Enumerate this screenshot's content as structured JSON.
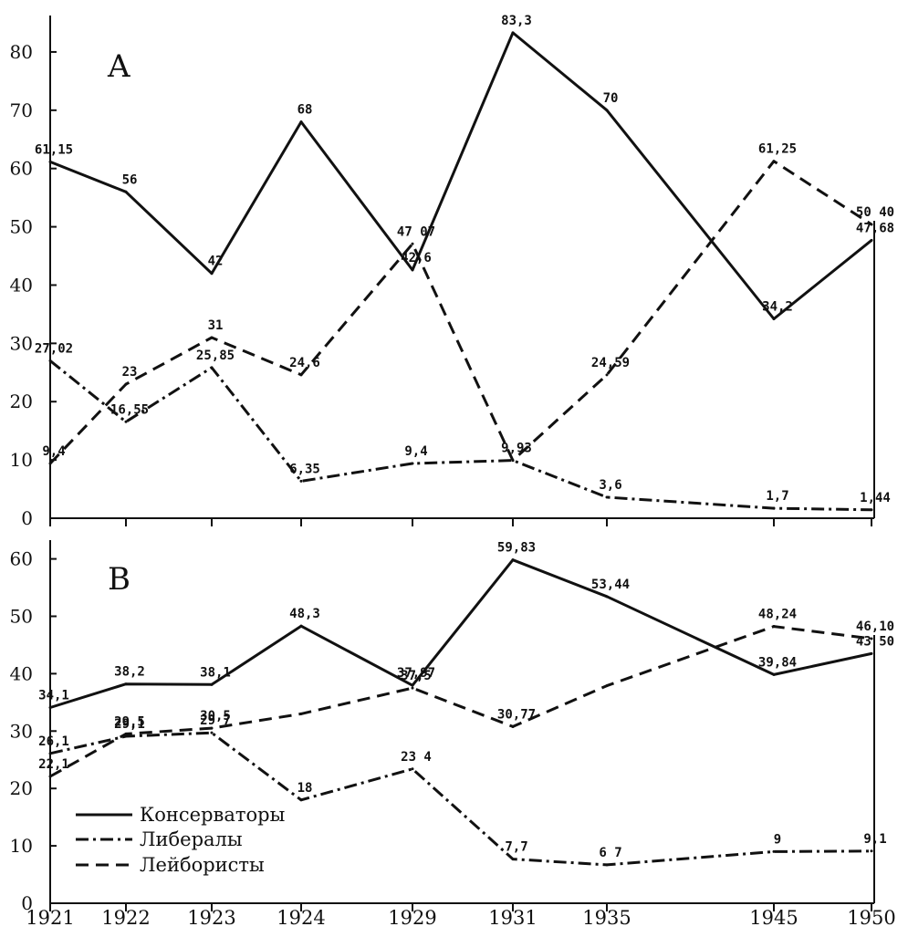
{
  "chart_data": [
    {
      "panel": "A",
      "type": "line",
      "categories": [
        "1921",
        "1922",
        "1923",
        "1924",
        "1929",
        "1931",
        "1935",
        "1945",
        "1950"
      ],
      "ylim": [
        0,
        85
      ],
      "yticks": [
        0,
        10,
        20,
        30,
        40,
        50,
        60,
        70,
        80
      ],
      "series": [
        {
          "key": "conservatives",
          "values": [
            61.15,
            56,
            42,
            68,
            42.6,
            83.3,
            70,
            34.2,
            47.68
          ],
          "labels": [
            "61,15",
            "56",
            "42",
            "68",
            "42,6",
            "83,3",
            "70",
            "34,2",
            "47,68"
          ]
        },
        {
          "key": "liberals",
          "values": [
            27.02,
            16.55,
            25.85,
            6.35,
            9.4,
            9.93,
            3.6,
            1.7,
            1.44
          ],
          "labels": [
            "27,02",
            "16,55",
            "25,85",
            "6,35",
            "9,4",
            "9,93",
            "3,6",
            "1,7",
            "1,44"
          ]
        },
        {
          "key": "labour",
          "values": [
            9.4,
            23,
            31,
            24.6,
            47.07,
            9.93,
            24.59,
            61.25,
            50.4
          ],
          "labels": [
            "9,4",
            "23",
            "31",
            "24,6",
            "47 07",
            "",
            "24,59",
            "61,25",
            "50 40"
          ]
        }
      ]
    },
    {
      "panel": "B",
      "type": "line",
      "categories": [
        "1921",
        "1922",
        "1923",
        "1924",
        "1929",
        "1931",
        "1935",
        "1945",
        "1950"
      ],
      "ylim": [
        0,
        62
      ],
      "yticks": [
        0,
        10,
        20,
        30,
        40,
        50,
        60
      ],
      "series": [
        {
          "key": "conservatives",
          "values": [
            34.1,
            38.2,
            38.1,
            48.3,
            37.97,
            59.83,
            53.44,
            39.84,
            43.5
          ],
          "labels": [
            "34,1",
            "38,2",
            "38,1",
            "48,3",
            "37,97",
            "59,83",
            "53,44",
            "39,84",
            "43 50"
          ]
        },
        {
          "key": "liberals",
          "values": [
            26.1,
            29.1,
            29.7,
            18,
            23.4,
            7.7,
            6.7,
            9,
            9.1
          ],
          "labels": [
            "26,1",
            "29,1",
            "29 7",
            "18",
            "23 4",
            "7,7",
            "6 7",
            "9",
            "9,1"
          ]
        },
        {
          "key": "labour",
          "values": [
            22.1,
            29.5,
            30.5,
            33.0,
            37.5,
            30.77,
            37.9,
            48.24,
            46.1
          ],
          "labels": [
            "22,1",
            "29,5",
            "30,5",
            "",
            "37,5",
            "30,77",
            "",
            "48,24",
            "46,10"
          ]
        }
      ]
    }
  ],
  "panel_letters": {
    "a": "A",
    "b": "B"
  },
  "legend": {
    "conservatives": "Консерваторы",
    "liberals": "Либералы",
    "labour": "Лейбористы"
  },
  "styles": {
    "conservatives": {
      "dash": "solid",
      "color": "#111111"
    },
    "liberals": {
      "dash": "dash-dot",
      "color": "#111111"
    },
    "labour": {
      "dash": "dashed",
      "color": "#111111"
    }
  }
}
